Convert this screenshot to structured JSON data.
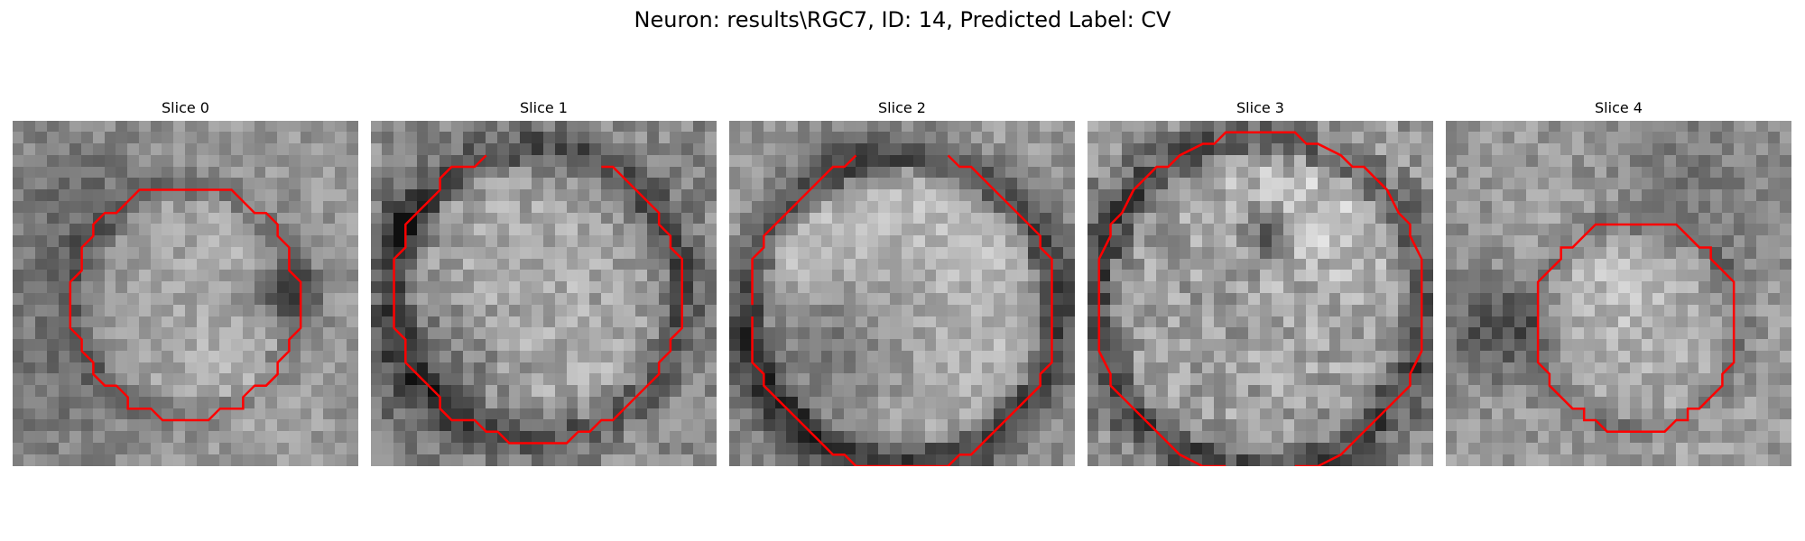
{
  "figure": {
    "title": "Neuron: results\\RGC7, ID: 14, Predicted Label: CV"
  },
  "panels": [
    {
      "title": "Slice 0"
    },
    {
      "title": "Slice 1"
    },
    {
      "title": "Slice 2"
    },
    {
      "title": "Slice 3"
    },
    {
      "title": "Slice 4"
    }
  ],
  "colors": {
    "contour": "#ff0000",
    "background": "#ffffff"
  }
}
